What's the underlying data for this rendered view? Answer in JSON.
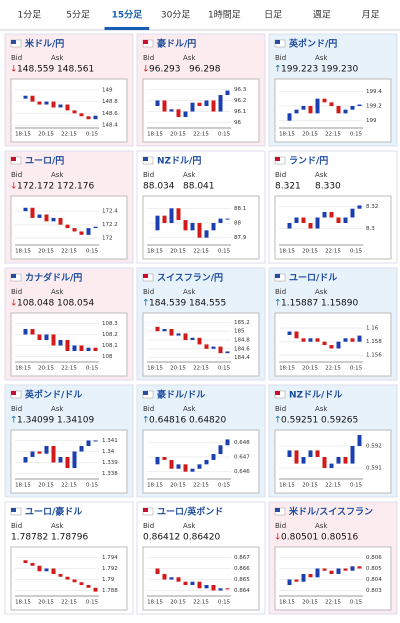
{
  "tabs": [
    "1分足",
    "5分足",
    "15分足",
    "30分足",
    "1時間足",
    "日足",
    "週足",
    "月足"
  ],
  "active_tab": 2,
  "bid_label": "Bid",
  "ask_label": "Ask",
  "time_labels": [
    "18:15",
    "20:15",
    "22:15",
    "0:15"
  ],
  "pairs": [
    {
      "name": "米ドル/円",
      "arrow": "↓",
      "bid": "148.559",
      "ask": "148.561",
      "ylim": [
        148.35,
        149.1
      ],
      "yticks": [
        149,
        148.8,
        148.6,
        148.4
      ],
      "closes": [
        148.85,
        148.9,
        148.8,
        148.75,
        148.8,
        148.7,
        148.75,
        148.65,
        148.6,
        148.55,
        148.5,
        148.56
      ]
    },
    {
      "name": "豪ドル/円",
      "arrow": "↓",
      "bid": "96.293",
      "ask": "96.298",
      "ylim": [
        95.95,
        96.35
      ],
      "yticks": [
        96.3,
        96.2,
        96.1,
        96
      ],
      "closes": [
        96.15,
        96.2,
        96.1,
        96.12,
        96.05,
        96.1,
        96.18,
        96.15,
        96.2,
        96.1,
        96.25,
        96.29
      ]
    },
    {
      "name": "英ポンド/円",
      "arrow": "↑",
      "bid": "199.223",
      "ask": "199.230",
      "ylim": [
        198.9,
        199.5
      ],
      "yticks": [
        199.4,
        199.2,
        199
      ],
      "closes": [
        199.0,
        199.1,
        199.15,
        199.2,
        199.1,
        199.3,
        199.25,
        199.2,
        199.1,
        199.15,
        199.2,
        199.22
      ]
    },
    {
      "name": "ユーロ/円",
      "arrow": "↓",
      "bid": "172.172",
      "ask": "172.176",
      "ylim": [
        171.9,
        172.55
      ],
      "yticks": [
        172.4,
        172.2,
        172
      ],
      "closes": [
        172.4,
        172.45,
        172.3,
        172.35,
        172.25,
        172.3,
        172.2,
        172.15,
        172.1,
        172.05,
        172.15,
        172.17
      ]
    },
    {
      "name": "NZドル/円",
      "bid": "88.034",
      "ask": "88.041",
      "ylim": [
        87.85,
        88.15
      ],
      "yticks": [
        88.1,
        88,
        87.9
      ],
      "closes": [
        87.95,
        88.05,
        88.0,
        88.1,
        88.02,
        87.95,
        88.0,
        87.9,
        87.95,
        88.0,
        88.03,
        88.03
      ]
    },
    {
      "name": "ランド/円",
      "bid": "8.321",
      "ask": "8.330",
      "ylim": [
        8.285,
        8.325
      ],
      "yticks": [
        8.32,
        8.3
      ],
      "closes": [
        8.3,
        8.305,
        8.31,
        8.305,
        8.3,
        8.31,
        8.315,
        8.31,
        8.305,
        8.31,
        8.318,
        8.321
      ]
    },
    {
      "name": "カナダドル/円",
      "arrow": "↓",
      "bid": "108.048",
      "ask": "108.054",
      "ylim": [
        107.95,
        108.35
      ],
      "yticks": [
        108.3,
        108.2,
        108.1,
        108
      ],
      "closes": [
        108.2,
        108.25,
        108.2,
        108.15,
        108.2,
        108.1,
        108.15,
        108.05,
        108.1,
        108.05,
        108.08,
        108.05
      ]
    },
    {
      "name": "スイスフラン/円",
      "arrow": "↑",
      "bid": "184.539",
      "ask": "184.555",
      "ylim": [
        184.3,
        185.3
      ],
      "yticks": [
        185.2,
        185,
        184.8,
        184.6,
        184.4
      ],
      "closes": [
        185.1,
        185.0,
        185.05,
        184.9,
        184.95,
        184.8,
        184.85,
        184.7,
        184.6,
        184.65,
        184.5,
        184.54
      ]
    },
    {
      "name": "ユーロ/ドル",
      "arrow": "↑",
      "bid": "1.15887",
      "ask": "1.15890",
      "ylim": [
        1.155,
        1.1615
      ],
      "yticks": [
        1.16,
        1.158,
        1.156
      ],
      "closes": [
        1.159,
        1.1595,
        1.1585,
        1.158,
        1.1585,
        1.158,
        1.1575,
        1.157,
        1.158,
        1.1585,
        1.158,
        1.1589
      ]
    },
    {
      "name": "英ポンド/ドル",
      "arrow": "↑",
      "bid": "1.34099",
      "ask": "1.34109",
      "ylim": [
        1.3375,
        1.3415
      ],
      "yticks": [
        1.341,
        1.34,
        1.339,
        1.338
      ],
      "closes": [
        1.339,
        1.3395,
        1.34,
        1.3398,
        1.3405,
        1.339,
        1.3395,
        1.3385,
        1.34,
        1.3405,
        1.341,
        1.341
      ]
    },
    {
      "name": "豪ドル/ドル",
      "arrow": "↑",
      "bid": "0.64816",
      "ask": "0.64820",
      "ylim": [
        0.6455,
        0.6485
      ],
      "yticks": [
        0.648,
        0.647,
        0.646
      ],
      "closes": [
        0.6465,
        0.647,
        0.6468,
        0.6462,
        0.6465,
        0.646,
        0.6462,
        0.6465,
        0.6468,
        0.6472,
        0.6478,
        0.6482
      ]
    },
    {
      "name": "NZドル/ドル",
      "arrow": "↑",
      "bid": "0.59251",
      "ask": "0.59265",
      "ylim": [
        0.5905,
        0.5925
      ],
      "yticks": [
        0.592,
        0.591
      ],
      "closes": [
        0.5915,
        0.5918,
        0.5912,
        0.5915,
        0.5918,
        0.5915,
        0.591,
        0.5912,
        0.5915,
        0.5912,
        0.592,
        0.5925
      ]
    },
    {
      "name": "ユーロ/豪ドル",
      "bid": "1.78782",
      "ask": "1.78796",
      "ylim": [
        1.787,
        1.795
      ],
      "yticks": [
        1.794,
        1.792,
        1.79,
        1.788
      ],
      "closes": [
        1.7935,
        1.793,
        1.7925,
        1.7915,
        1.792,
        1.791,
        1.7905,
        1.79,
        1.7895,
        1.789,
        1.7885,
        1.7878
      ]
    },
    {
      "name": "ユーロ/英ポンド",
      "bid": "0.86412",
      "ask": "0.86420",
      "ylim": [
        0.8635,
        0.8675
      ],
      "yticks": [
        0.867,
        0.866,
        0.865,
        0.864
      ],
      "closes": [
        0.866,
        0.8655,
        0.865,
        0.8652,
        0.8648,
        0.8645,
        0.8648,
        0.8642,
        0.8645,
        0.864,
        0.8642,
        0.8641
      ]
    },
    {
      "name": "米ドル/スイスフラン",
      "arrow": "↓",
      "bid": "0.80501",
      "ask": "0.80516",
      "ylim": [
        0.8025,
        0.8065
      ],
      "yticks": [
        0.806,
        0.805,
        0.804,
        0.803
      ],
      "closes": [
        0.8035,
        0.804,
        0.8038,
        0.8045,
        0.8042,
        0.805,
        0.8048,
        0.8045,
        0.805,
        0.8048,
        0.8052,
        0.805
      ]
    }
  ]
}
